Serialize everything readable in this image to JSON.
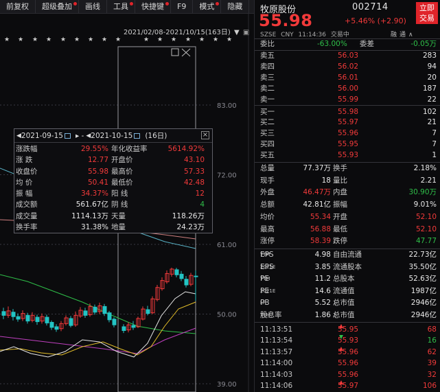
{
  "toolbar": {
    "items": [
      {
        "label": "前复权",
        "dot": false
      },
      {
        "label": "超级叠加",
        "dot": true
      },
      {
        "label": "画线",
        "dot": false
      },
      {
        "label": "工具",
        "dot": true
      },
      {
        "label": "快捷键",
        "dot": true
      },
      {
        "label": "F9",
        "dot": false
      },
      {
        "label": "模式",
        "dot": true
      },
      {
        "label": "隐藏",
        "dot": false
      }
    ]
  },
  "chart": {
    "range_label": "2021/02/08-2021/10/15(163日)",
    "price_axis": [
      "83.00",
      "72.00",
      "61.00",
      "50.00",
      "39.00"
    ],
    "colors": {
      "up": "#f23a3a",
      "down": "#23c4c4",
      "ma5": "#e8e8e8",
      "ma10": "#e6c02a",
      "ma20": "#c040c0",
      "ma60": "#2fbf49",
      "ma120": "#5ab4c8",
      "ma250": "#d08080"
    }
  },
  "popup": {
    "start_date": "2021-09-15",
    "end_date": "2021-10-15",
    "days": "(16日)",
    "rows": [
      {
        "l1": "涨跌幅",
        "v1": "29.55%",
        "c1": "red",
        "l2": "年化收益率",
        "v2": "5614.92%",
        "c2": "red"
      },
      {
        "l1": "涨 跌",
        "v1": "12.77",
        "c1": "red",
        "l2": "开盘价",
        "v2": "43.10",
        "c2": "red"
      },
      {
        "l1": "收盘价",
        "v1": "55.98",
        "c1": "red",
        "l2": "最高价",
        "v2": "57.33",
        "c2": "red"
      },
      {
        "l1": "均 价",
        "v1": "50.41",
        "c1": "red",
        "l2": "最低价",
        "v2": "42.48",
        "c2": "red"
      },
      {
        "l1": "振 幅",
        "v1": "34.37%",
        "c1": "red",
        "l2": "阳 线",
        "v2": "12",
        "c2": "red"
      },
      {
        "l1": "成交额",
        "v1": "561.67亿",
        "c1": "white",
        "l2": "阴 线",
        "v2": "4",
        "c2": "green"
      },
      {
        "l1": "成交量",
        "v1": "1114.13万",
        "c1": "white",
        "l2": "天量",
        "v2": "118.26万",
        "c2": "white"
      },
      {
        "l1": "换手率",
        "v1": "31.38%",
        "c1": "white",
        "l2": "地量",
        "v2": "24.23万",
        "c2": "white"
      }
    ]
  },
  "quote": {
    "name": "牧原股份",
    "code": "002714",
    "price": "55.98",
    "change": "+5.46% (+2.90)",
    "trade_button": [
      "立即",
      "交易"
    ],
    "market": "SZSE",
    "currency": "CNY",
    "time": "11:14:36",
    "status": "交易中",
    "icons": "融通∧",
    "weibi_label": "委比",
    "weibi": "-63.00%",
    "weicha_label": "委差",
    "weicha": "-0.05万",
    "asks": [
      {
        "label": "卖五",
        "price": "56.03",
        "vol": "283"
      },
      {
        "label": "卖四",
        "price": "56.02",
        "vol": "94"
      },
      {
        "label": "卖三",
        "price": "56.01",
        "vol": "20"
      },
      {
        "label": "卖二",
        "price": "56.00",
        "vol": "187"
      },
      {
        "label": "卖一",
        "price": "55.99",
        "vol": "22"
      }
    ],
    "bids": [
      {
        "label": "买一",
        "price": "55.98",
        "vol": "102"
      },
      {
        "label": "买二",
        "price": "55.97",
        "vol": "21"
      },
      {
        "label": "买三",
        "price": "55.96",
        "vol": "7"
      },
      {
        "label": "买四",
        "price": "55.95",
        "vol": "7"
      },
      {
        "label": "买五",
        "price": "55.93",
        "vol": "1"
      }
    ],
    "stats": [
      {
        "l1": "总量",
        "v1": "77.37万",
        "c1": "white",
        "l2": "换手",
        "v2": "2.18%",
        "c2": "white"
      },
      {
        "l1": "现手",
        "v1": "18",
        "c1": "white",
        "l2": "量比",
        "v2": "2.21",
        "c2": "white"
      },
      {
        "l1": "外盘",
        "v1": "46.47万",
        "c1": "red",
        "l2": "内盘",
        "v2": "30.90万",
        "c2": "green"
      },
      {
        "l1": "总额",
        "v1": "42.81亿",
        "c1": "white",
        "l2": "振幅",
        "v2": "9.01%",
        "c2": "white"
      },
      {
        "l1": "均价",
        "v1": "55.34",
        "c1": "red",
        "l2": "开盘",
        "v2": "52.10",
        "c2": "red"
      },
      {
        "l1": "最高",
        "v1": "56.88",
        "c1": "red",
        "l2": "最低",
        "v2": "52.10",
        "c2": "red"
      },
      {
        "l1": "涨停",
        "v1": "58.39",
        "c1": "red",
        "l2": "跌停",
        "v2": "47.77",
        "c2": "green"
      }
    ],
    "fundamentals": [
      {
        "l1": "EPS",
        "s1": "TTM",
        "v1": "4.98",
        "l2": "自由流通",
        "s2": "",
        "v2": "22.73亿"
      },
      {
        "l1": "EPS",
        "s1": "2021E",
        "v1": "3.85",
        "l2": "流通股本",
        "s2": "",
        "v2": "35.50亿"
      },
      {
        "l1": "PE",
        "s1": "TTM",
        "v1": "11.2",
        "l2": "总股本",
        "s2": "",
        "v2": "52.63亿"
      },
      {
        "l1": "PE",
        "s1": "2021E",
        "v1": "14.6",
        "l2": "流通值",
        "s2": "",
        "v2": "1987亿"
      },
      {
        "l1": "PB",
        "s1": "LF",
        "v1": "5.52",
        "l2": "总市值",
        "s2": "1",
        "v2": "2946亿"
      },
      {
        "l1": "股息率",
        "s1": "TTM",
        "v1": "1.86",
        "l2": "总市值",
        "s2": "2",
        "v2": "2946亿"
      }
    ],
    "ticks": [
      {
        "time": "11:13:51",
        "price": "55.95",
        "dir": "up",
        "vol": "68",
        "vc": "red"
      },
      {
        "time": "11:13:54",
        "price": "55.93",
        "dir": "down",
        "vol": "16",
        "vc": "green"
      },
      {
        "time": "11:13:57",
        "price": "55.96",
        "dir": "up",
        "vol": "62",
        "vc": "red"
      },
      {
        "time": "11:14:00",
        "price": "55.96",
        "dir": "",
        "vol": "39",
        "vc": "red"
      },
      {
        "time": "11:14:03",
        "price": "55.96",
        "dir": "",
        "vol": "32",
        "vc": "red"
      },
      {
        "time": "11:14:06",
        "price": "55.97",
        "dir": "up",
        "vol": "106",
        "vc": "red"
      }
    ]
  }
}
